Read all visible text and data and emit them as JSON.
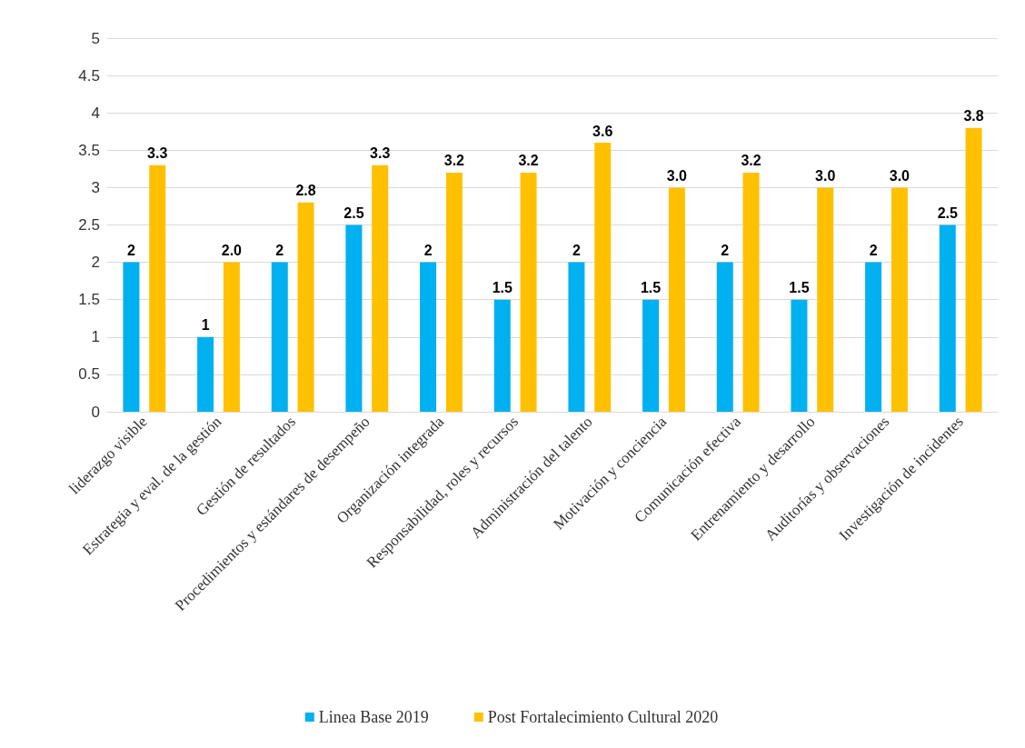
{
  "chart_data": {
    "type": "bar",
    "categories": [
      "liderazgo visible",
      "Estrategia y eval. de la gestión",
      "Gestión de resultados",
      "Procedimientos y estándares de desempeño",
      "Organización integrada",
      "Responsabilidad, roles y recursos",
      "Administración del talento",
      "Motivación y conciencia",
      "Comunicación efectiva",
      "Entrenamiento y desarrollo",
      "Auditorías y observaciones",
      "Investigación de incidentes"
    ],
    "series": [
      {
        "name": "Linea Base 2019",
        "color": "#00b0f0",
        "values": [
          2,
          1,
          2,
          2.5,
          2,
          1.5,
          2,
          1.5,
          2,
          1.5,
          2,
          2.5
        ],
        "value_labels": [
          "2",
          "1",
          "2",
          "2.5",
          "2",
          "1.5",
          "2",
          "1.5",
          "2",
          "1.5",
          "2",
          "2.5"
        ]
      },
      {
        "name": "Post Fortalecimiento Cultural 2020",
        "color": "#ffc000",
        "values": [
          3.3,
          2.0,
          2.8,
          3.3,
          3.2,
          3.2,
          3.6,
          3.0,
          3.2,
          3.0,
          3.0,
          3.8
        ],
        "value_labels": [
          "3.3",
          "2.0",
          "2.8",
          "3.3",
          "3.2",
          "3.2",
          "3.6",
          "3.0",
          "3.2",
          "3.0",
          "3.0",
          "3.8"
        ]
      }
    ],
    "ylim": [
      0,
      5
    ],
    "yticks": [
      0,
      0.5,
      1,
      1.5,
      2,
      2.5,
      3,
      3.5,
      4,
      4.5,
      5
    ],
    "grid": "y",
    "legend": "bottom"
  }
}
